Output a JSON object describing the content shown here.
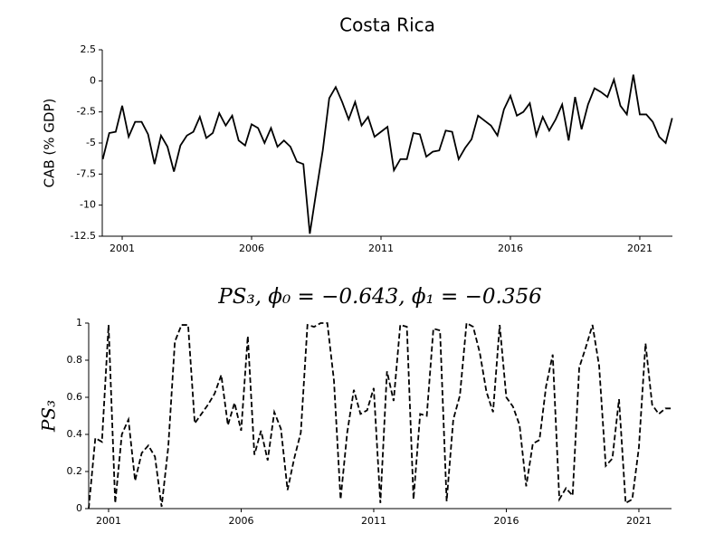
{
  "chart_data": [
    {
      "type": "line",
      "title": "Costa Rica",
      "y_label": "CAB (% GDP)",
      "color": "#000000",
      "linestyle": "solid",
      "x": [
        2000.25,
        2000.5,
        2000.75,
        2001,
        2001.25,
        2001.5,
        2001.75,
        2002,
        2002.25,
        2002.5,
        2002.75,
        2003,
        2003.25,
        2003.5,
        2003.75,
        2004,
        2004.25,
        2004.5,
        2004.75,
        2005,
        2005.25,
        2005.5,
        2005.75,
        2006,
        2006.25,
        2006.5,
        2006.75,
        2007,
        2007.25,
        2007.5,
        2007.75,
        2008,
        2008.25,
        2008.5,
        2008.75,
        2009,
        2009.25,
        2009.5,
        2009.75,
        2010,
        2010.25,
        2010.5,
        2010.75,
        2011,
        2011.25,
        2011.5,
        2011.75,
        2012,
        2012.25,
        2012.5,
        2012.75,
        2013,
        2013.25,
        2013.5,
        2013.75,
        2014,
        2014.25,
        2014.5,
        2014.75,
        2015,
        2015.25,
        2015.5,
        2015.75,
        2016,
        2016.25,
        2016.5,
        2016.75,
        2017,
        2017.25,
        2017.5,
        2017.75,
        2018,
        2018.25,
        2018.5,
        2018.75,
        2019,
        2019.25,
        2019.5,
        2019.75,
        2020,
        2020.25,
        2020.5,
        2020.75,
        2021,
        2021.25,
        2021.5,
        2021.75,
        2022,
        2022.25
      ],
      "values": [
        -6.3,
        -4.2,
        -4.1,
        -2.0,
        -4.5,
        -3.3,
        -3.3,
        -4.3,
        -6.7,
        -4.4,
        -5.3,
        -7.3,
        -5.2,
        -4.4,
        -4.1,
        -2.9,
        -4.6,
        -4.2,
        -2.6,
        -3.6,
        -2.8,
        -4.8,
        -5.2,
        -3.5,
        -3.8,
        -5.0,
        -3.8,
        -5.3,
        -4.8,
        -5.3,
        -6.5,
        -6.7,
        -12.3,
        -8.9,
        -5.6,
        -1.4,
        -0.5,
        -1.7,
        -3.1,
        -1.7,
        -3.6,
        -2.9,
        -4.5,
        -4.1,
        -3.7,
        -7.2,
        -6.3,
        -6.3,
        -4.2,
        -4.3,
        -6.1,
        -5.7,
        -5.6,
        -4.0,
        -4.1,
        -6.3,
        -5.4,
        -4.7,
        -2.8,
        -3.2,
        -3.6,
        -4.4,
        -2.3,
        -1.2,
        -2.8,
        -2.5,
        -1.8,
        -4.4,
        -2.9,
        -4.0,
        -3.1,
        -1.9,
        -4.8,
        -1.3,
        -3.9,
        -1.9,
        -0.6,
        -0.9,
        -1.3,
        0.1,
        -2.0,
        -2.7,
        0.5,
        -2.7,
        -2.7,
        -3.3,
        -4.5,
        -5.0,
        -3.0
      ],
      "xlim": [
        2000.23,
        2022.26
      ],
      "xticks": [
        2001,
        2006,
        2011,
        2016,
        2021
      ],
      "ylim": [
        -12.5,
        2.5
      ],
      "yticks": [
        2.5,
        0,
        -2.5,
        -5,
        -7.5,
        -10,
        -12.5
      ]
    },
    {
      "type": "line",
      "title": "PS₃, ϕ₀ = −0.643, ϕ₁ = −0.356",
      "y_label": "PS₃",
      "color": "#000000",
      "linestyle": "dashed",
      "x": [
        2000.25,
        2000.5,
        2000.75,
        2001,
        2001.25,
        2001.5,
        2001.75,
        2002,
        2002.25,
        2002.5,
        2002.75,
        2003,
        2003.25,
        2003.5,
        2003.75,
        2004,
        2004.25,
        2004.5,
        2004.75,
        2005,
        2005.25,
        2005.5,
        2005.75,
        2006,
        2006.25,
        2006.5,
        2006.75,
        2007,
        2007.25,
        2007.5,
        2007.75,
        2008,
        2008.25,
        2008.5,
        2008.75,
        2009,
        2009.25,
        2009.5,
        2009.75,
        2010,
        2010.25,
        2010.5,
        2010.75,
        2011,
        2011.25,
        2011.5,
        2011.75,
        2012,
        2012.25,
        2012.5,
        2012.75,
        2013,
        2013.25,
        2013.5,
        2013.75,
        2014,
        2014.25,
        2014.5,
        2014.75,
        2015,
        2015.25,
        2015.5,
        2015.75,
        2016,
        2016.25,
        2016.5,
        2016.75,
        2017,
        2017.25,
        2017.5,
        2017.75,
        2018,
        2018.25,
        2018.5,
        2018.75,
        2019,
        2019.25,
        2019.5,
        2019.75,
        2020,
        2020.25,
        2020.5,
        2020.75,
        2021,
        2021.25,
        2021.5,
        2021.75,
        2022,
        2022.25
      ],
      "values": [
        0.0,
        0.38,
        0.36,
        0.99,
        0.03,
        0.4,
        0.48,
        0.15,
        0.3,
        0.34,
        0.28,
        0.01,
        0.33,
        0.9,
        0.99,
        0.99,
        0.46,
        0.51,
        0.56,
        0.62,
        0.72,
        0.45,
        0.57,
        0.42,
        0.93,
        0.29,
        0.42,
        0.26,
        0.52,
        0.43,
        0.1,
        0.27,
        0.41,
        0.99,
        0.98,
        1.0,
        1.0,
        0.69,
        0.05,
        0.41,
        0.64,
        0.51,
        0.53,
        0.65,
        0.03,
        0.74,
        0.58,
        0.99,
        0.98,
        0.05,
        0.51,
        0.5,
        0.97,
        0.96,
        0.04,
        0.48,
        0.61,
        1.0,
        0.98,
        0.84,
        0.63,
        0.52,
        0.99,
        0.6,
        0.55,
        0.45,
        0.12,
        0.35,
        0.37,
        0.66,
        0.83,
        0.05,
        0.11,
        0.07,
        0.76,
        0.87,
        0.99,
        0.77,
        0.23,
        0.27,
        0.59,
        0.03,
        0.05,
        0.33,
        0.89,
        0.56,
        0.51,
        0.54,
        0.54
      ],
      "xlim": [
        2000.25,
        2022.23
      ],
      "xticks": [
        2001,
        2006,
        2011,
        2016,
        2021
      ],
      "ylim": [
        0,
        1
      ],
      "yticks": [
        0,
        0.2,
        0.4,
        0.6,
        0.8,
        1
      ]
    }
  ]
}
